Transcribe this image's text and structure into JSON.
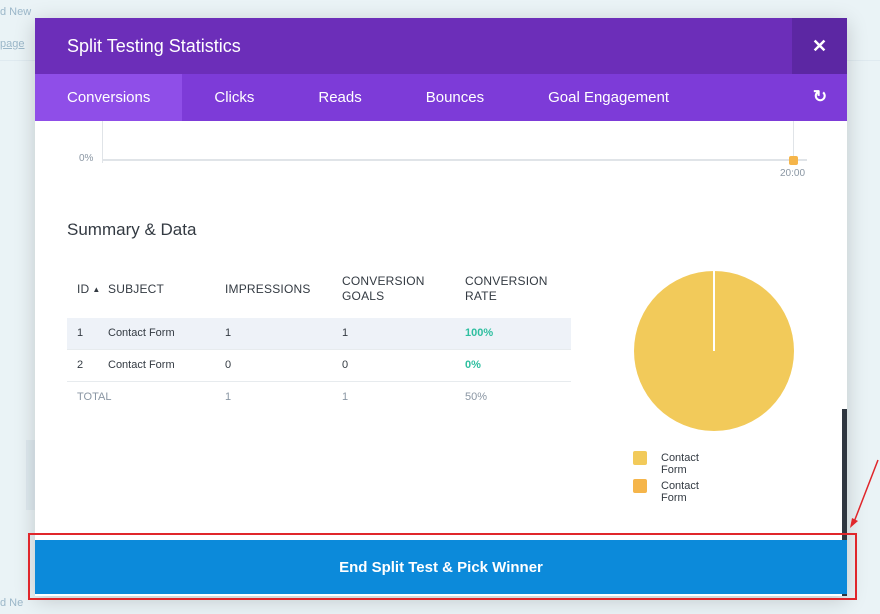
{
  "background": {
    "texts": [
      "d New",
      "page",
      "d Ne"
    ]
  },
  "modal": {
    "title": "Split Testing Statistics",
    "close_glyph": "✕",
    "tabs": [
      {
        "label": "Conversions",
        "active": true
      },
      {
        "label": "Clicks",
        "active": false
      },
      {
        "label": "Reads",
        "active": false
      },
      {
        "label": "Bounces",
        "active": false
      },
      {
        "label": "Goal Engagement",
        "active": false
      }
    ],
    "refresh_glyph": "↻"
  },
  "chart": {
    "y_tick": "0%",
    "x_tick": "20:00"
  },
  "summary": {
    "title": "Summary & Data",
    "columns": {
      "id": "ID",
      "subject": "SUBJECT",
      "impressions": "IMPRESSIONS",
      "goals_line1": "CONVERSION",
      "goals_line2": "GOALS",
      "rate_line1": "CONVERSION",
      "rate_line2": "RATE"
    },
    "rows": [
      {
        "id": "1",
        "subject": "Contact Form",
        "impressions": "1",
        "goals": "1",
        "rate": "100%"
      },
      {
        "id": "2",
        "subject": "Contact Form",
        "impressions": "0",
        "goals": "0",
        "rate": "0%"
      }
    ],
    "total": {
      "label": "TOTAL",
      "impressions": "1",
      "goals": "1",
      "rate": "50%"
    }
  },
  "chart_data": {
    "type": "pie",
    "slices": [
      {
        "label": "Contact Form",
        "value": 100,
        "color": "#f2ca5a"
      },
      {
        "label": "Contact Form",
        "value": 0,
        "color": "#f5b54a"
      }
    ]
  },
  "legend": [
    {
      "label": "Contact Form",
      "color": "#f2ca5a"
    },
    {
      "label": "Contact Form",
      "color": "#f5b54a"
    }
  ],
  "footer": {
    "button_label": "End Split Test & Pick Winner"
  },
  "colors": {
    "header": "#6c2eb9",
    "tabs": "#7d3bd8",
    "active_tab": "#8f4ee8",
    "primary_button": "#0c8ada",
    "rate_positive": "#2fbfa0",
    "annotation": "#e0262b"
  }
}
